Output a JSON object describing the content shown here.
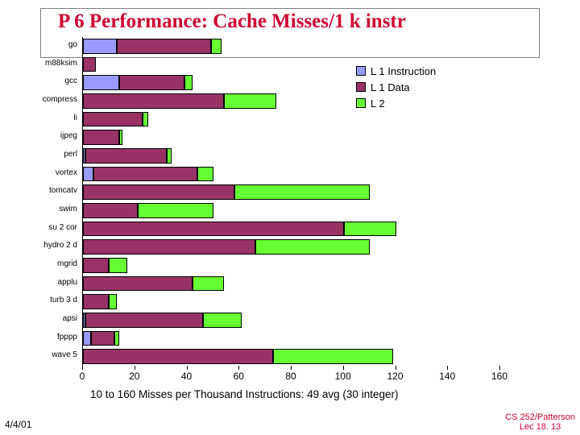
{
  "title": {
    "text": "P 6 Performance: Cache Misses/1 k instr",
    "color": "#cf0030",
    "fontsize": 25
  },
  "date": "4/4/01",
  "footer": {
    "line1": "CS 252/Patterson",
    "line2": "Lec 18. 13",
    "color": "#cf0030"
  },
  "legend": {
    "items": [
      {
        "label": "L 1 Instruction",
        "color": "#9999ff"
      },
      {
        "label": "L 1 Data",
        "color": "#993366"
      },
      {
        "label": "L 2",
        "color": "#66ff33"
      }
    ]
  },
  "chart": {
    "type": "stacked-bar-horizontal",
    "xlim": [
      0,
      160
    ],
    "xtick_step": 20,
    "categories": [
      "go",
      "m88ksim",
      "gcc",
      "compress",
      "li",
      "ijpeg",
      "perl",
      "vortex",
      "tomcatv",
      "swim",
      "su 2 cor",
      "hydro 2 d",
      "mgrid",
      "applu",
      "turb 3 d",
      "apsi",
      "fpppp",
      "wave 5"
    ],
    "series_colors": {
      "l1i": "#9999ff",
      "l1d": "#993366",
      "l2": "#66ff33"
    },
    "bar_border_color": "#000000",
    "data": [
      {
        "l1i": 13,
        "l1d": 36,
        "l2": 4
      },
      {
        "l1i": 0,
        "l1d": 5,
        "l2": 0
      },
      {
        "l1i": 14,
        "l1d": 25,
        "l2": 3
      },
      {
        "l1i": 0,
        "l1d": 54,
        "l2": 20
      },
      {
        "l1i": 0,
        "l1d": 23,
        "l2": 2
      },
      {
        "l1i": 0,
        "l1d": 14,
        "l2": 1
      },
      {
        "l1i": 1,
        "l1d": 31,
        "l2": 2
      },
      {
        "l1i": 4,
        "l1d": 40,
        "l2": 6
      },
      {
        "l1i": 0,
        "l1d": 58,
        "l2": 52
      },
      {
        "l1i": 0,
        "l1d": 21,
        "l2": 29
      },
      {
        "l1i": 0,
        "l1d": 100,
        "l2": 20
      },
      {
        "l1i": 0,
        "l1d": 66,
        "l2": 44
      },
      {
        "l1i": 0,
        "l1d": 10,
        "l2": 7
      },
      {
        "l1i": 0,
        "l1d": 42,
        "l2": 12
      },
      {
        "l1i": 0,
        "l1d": 10,
        "l2": 3
      },
      {
        "l1i": 1,
        "l1d": 45,
        "l2": 15
      },
      {
        "l1i": 3,
        "l1d": 9,
        "l2": 2
      },
      {
        "l1i": 0,
        "l1d": 73,
        "l2": 46
      }
    ],
    "x_axis_title": "10 to 160 Misses per Thousand Instructions: 49 avg (30 integer)",
    "axis_fontsize": 12,
    "title_fontsize": 13.5,
    "cat_fontsize": 10
  }
}
